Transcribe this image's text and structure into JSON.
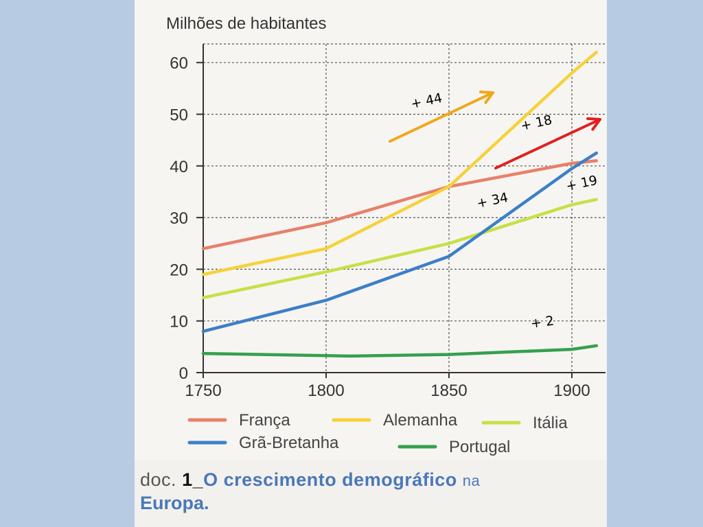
{
  "chart_data": {
    "type": "line",
    "ylabel": "Milhões de habitantes",
    "xlim": [
      1750,
      1910
    ],
    "ylim": [
      0,
      62
    ],
    "x_ticks": [
      "1750",
      "1800",
      "1850",
      "1900"
    ],
    "y_ticks": [
      "0",
      "10",
      "20",
      "30",
      "40",
      "50",
      "60"
    ],
    "grid": true,
    "legend_position": "bottom",
    "series": [
      {
        "name": "França",
        "color": "#e8806a",
        "x": [
          1750,
          1800,
          1850,
          1900,
          1910
        ],
        "y": [
          24,
          29,
          36,
          40.5,
          41
        ]
      },
      {
        "name": "Alemanha",
        "color": "#f5d23a",
        "x": [
          1750,
          1800,
          1850,
          1900,
          1910
        ],
        "y": [
          19,
          24,
          36,
          58,
          62
        ]
      },
      {
        "name": "Itália",
        "color": "#c7e045",
        "x": [
          1750,
          1800,
          1850,
          1900,
          1910
        ],
        "y": [
          14.5,
          19.5,
          25,
          32.5,
          33.5
        ]
      },
      {
        "name": "Grã-Bretanha",
        "color": "#3d7fc8",
        "x": [
          1750,
          1800,
          1850,
          1900,
          1910
        ],
        "y": [
          8,
          14,
          22.5,
          39.5,
          42.5
        ]
      },
      {
        "name": "Portugal",
        "color": "#35a04f",
        "x": [
          1750,
          1800,
          1810,
          1850,
          1900,
          1910
        ],
        "y": [
          3.7,
          3.3,
          3.2,
          3.5,
          4.5,
          5.2
        ]
      }
    ],
    "annotations": [
      {
        "text": "+ 44",
        "color": "#000000"
      },
      {
        "text": "+ 18",
        "color": "#000000"
      },
      {
        "text": "+ 19",
        "color": "#000000"
      },
      {
        "text": "+ 34",
        "color": "#000000"
      },
      {
        "text": "+ 2",
        "color": "#000000"
      }
    ],
    "arrows": [
      {
        "color": "#f0a818"
      },
      {
        "color": "#e02020"
      }
    ]
  },
  "caption": {
    "prefix": "doc.",
    "number": "1_",
    "title_line1": "O crescimento demográfico",
    "cut": "na",
    "title_line2": "Europa."
  }
}
